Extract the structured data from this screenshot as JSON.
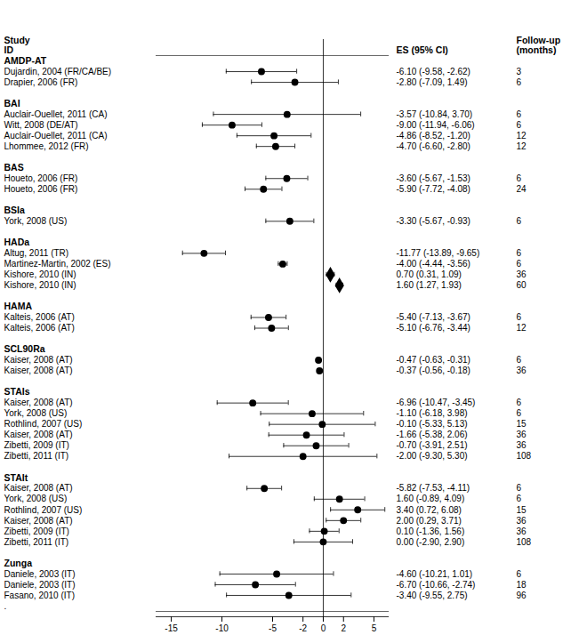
{
  "chart_data": {
    "type": "forest",
    "column_headers": [
      "Study\nID",
      "ES (95% CI)",
      "Follow-up\n(months)"
    ],
    "color": "black",
    "xlim": [
      -16.5,
      6.5
    ],
    "xticks": [
      -15,
      -10,
      -5,
      -2,
      0,
      2,
      5
    ],
    "reference_line": 0,
    "annotations": [
      "."
    ],
    "groups": [
      {
        "name": "AMDP-AT",
        "studies": [
          {
            "label": "Dujardin, 2004 (FR/CA/BE)",
            "value": -6.1,
            "ci_lo": -9.58,
            "ci_hi": -2.62,
            "value_label": "-6.10 (-9.58, -2.62)",
            "follow_up": 3,
            "marker": "circle"
          },
          {
            "label": "Drapier, 2006 (FR)",
            "value": -2.8,
            "ci_lo": -7.09,
            "ci_hi": 1.49,
            "value_label": "-2.80 (-7.09, 1.49)",
            "follow_up": 6,
            "marker": "circle"
          }
        ]
      },
      {
        "name": "BAI",
        "studies": [
          {
            "label": "Auclair-Ouellet, 2011 (CA)",
            "value": -3.57,
            "ci_lo": -10.84,
            "ci_hi": 3.7,
            "value_label": "-3.57 (-10.84, 3.70)",
            "follow_up": 6,
            "marker": "circle"
          },
          {
            "label": "Witt, 2008 (DE/AT)",
            "value": -9.0,
            "ci_lo": -11.94,
            "ci_hi": -6.06,
            "value_label": "-9.00 (-11.94, -6.06)",
            "follow_up": 6,
            "marker": "circle"
          },
          {
            "label": "Auclair-Ouellet, 2011 (CA)",
            "value": -4.86,
            "ci_lo": -8.52,
            "ci_hi": -1.2,
            "value_label": "-4.86 (-8.52, -1.20)",
            "follow_up": 12,
            "marker": "circle"
          },
          {
            "label": "Lhommee, 2012 (FR)",
            "value": -4.7,
            "ci_lo": -6.6,
            "ci_hi": -2.8,
            "value_label": "-4.70 (-6.60, -2.80)",
            "follow_up": 12,
            "marker": "circle"
          }
        ]
      },
      {
        "name": "BAS",
        "studies": [
          {
            "label": "Houeto, 2006 (FR)",
            "value": -3.6,
            "ci_lo": -5.67,
            "ci_hi": -1.53,
            "value_label": "-3.60 (-5.67, -1.53)",
            "follow_up": 6,
            "marker": "circle"
          },
          {
            "label": "Houeto, 2006 (FR)",
            "value": -5.9,
            "ci_lo": -7.72,
            "ci_hi": -4.08,
            "value_label": "-5.90 (-7.72, -4.08)",
            "follow_up": 24,
            "marker": "circle"
          }
        ]
      },
      {
        "name": "BSIa",
        "studies": [
          {
            "label": "York, 2008 (US)",
            "value": -3.3,
            "ci_lo": -5.67,
            "ci_hi": -0.93,
            "value_label": "-3.30 (-5.67, -0.93)",
            "follow_up": 6,
            "marker": "circle"
          }
        ]
      },
      {
        "name": "HADa",
        "studies": [
          {
            "label": "Altug, 2011 (TR)",
            "value": -11.77,
            "ci_lo": -13.89,
            "ci_hi": -9.65,
            "value_label": "-11.77 (-13.89, -9.65)",
            "follow_up": 6,
            "marker": "circle"
          },
          {
            "label": "Martinez-Martin, 2002 (ES)",
            "value": -4.0,
            "ci_lo": -4.44,
            "ci_hi": -3.56,
            "value_label": "-4.00 (-4.44, -3.56)",
            "follow_up": 6,
            "marker": "circle"
          },
          {
            "label": "Kishore, 2010 (IN)",
            "value": 0.7,
            "ci_lo": 0.31,
            "ci_hi": 1.09,
            "value_label": "0.70 (0.31, 1.09)",
            "follow_up": 36,
            "marker": "diamond"
          },
          {
            "label": "Kishore, 2010 (IN)",
            "value": 1.6,
            "ci_lo": 1.27,
            "ci_hi": 1.93,
            "value_label": "1.60 (1.27, 1.93)",
            "follow_up": 60,
            "marker": "diamond"
          }
        ]
      },
      {
        "name": "HAMA",
        "studies": [
          {
            "label": "Kalteis, 2006 (AT)",
            "value": -5.4,
            "ci_lo": -7.13,
            "ci_hi": -3.67,
            "value_label": "-5.40 (-7.13, -3.67)",
            "follow_up": 6,
            "marker": "circle"
          },
          {
            "label": "Kalteis, 2006 (AT)",
            "value": -5.1,
            "ci_lo": -6.76,
            "ci_hi": -3.44,
            "value_label": "-5.10 (-6.76, -3.44)",
            "follow_up": 12,
            "marker": "circle"
          }
        ]
      },
      {
        "name": "SCL90Ra",
        "studies": [
          {
            "label": "Kaiser, 2008 (AT)",
            "value": -0.47,
            "ci_lo": -0.63,
            "ci_hi": -0.31,
            "value_label": "-0.47 (-0.63, -0.31)",
            "follow_up": 6,
            "marker": "circle"
          },
          {
            "label": "Kaiser, 2008 (AT)",
            "value": -0.37,
            "ci_lo": -0.56,
            "ci_hi": -0.18,
            "value_label": "-0.37 (-0.56, -0.18)",
            "follow_up": 36,
            "marker": "circle"
          }
        ]
      },
      {
        "name": "STAIs",
        "studies": [
          {
            "label": "Kaiser, 2008 (AT)",
            "value": -6.96,
            "ci_lo": -10.47,
            "ci_hi": -3.45,
            "value_label": "-6.96 (-10.47, -3.45)",
            "follow_up": 6,
            "marker": "circle"
          },
          {
            "label": "York, 2008 (US)",
            "value": -1.1,
            "ci_lo": -6.18,
            "ci_hi": 3.98,
            "value_label": "-1.10 (-6.18, 3.98)",
            "follow_up": 6,
            "marker": "circle"
          },
          {
            "label": "Rothlind, 2007 (US)",
            "value": -0.1,
            "ci_lo": -5.33,
            "ci_hi": 5.13,
            "value_label": "-0.10 (-5.33, 5.13)",
            "follow_up": 15,
            "marker": "circle"
          },
          {
            "label": "Kaiser, 2008 (AT)",
            "value": -1.66,
            "ci_lo": -5.38,
            "ci_hi": 2.06,
            "value_label": "-1.66 (-5.38, 2.06)",
            "follow_up": 36,
            "marker": "circle"
          },
          {
            "label": "Zibetti, 2009 (IT)",
            "value": -0.7,
            "ci_lo": -3.91,
            "ci_hi": 2.51,
            "value_label": "-0.70 (-3.91, 2.51)",
            "follow_up": 36,
            "marker": "circle"
          },
          {
            "label": "Zibetti, 2011 (IT)",
            "value": -2.0,
            "ci_lo": -9.3,
            "ci_hi": 5.3,
            "value_label": "-2.00 (-9.30, 5.30)",
            "follow_up": 108,
            "marker": "circle"
          }
        ]
      },
      {
        "name": "STAIt",
        "studies": [
          {
            "label": "Kaiser, 2008 (AT)",
            "value": -5.82,
            "ci_lo": -7.53,
            "ci_hi": -4.11,
            "value_label": "-5.82 (-7.53, -4.11)",
            "follow_up": 6,
            "marker": "circle"
          },
          {
            "label": "York, 2008 (US)",
            "value": 1.6,
            "ci_lo": -0.89,
            "ci_hi": 4.09,
            "value_label": "1.60 (-0.89, 4.09)",
            "follow_up": 6,
            "marker": "circle"
          },
          {
            "label": "Rothlind, 2007 (US)",
            "value": 3.4,
            "ci_lo": 0.72,
            "ci_hi": 6.08,
            "value_label": "3.40 (0.72, 6.08)",
            "follow_up": 15,
            "marker": "circle"
          },
          {
            "label": "Kaiser, 2008 (AT)",
            "value": 2.0,
            "ci_lo": 0.29,
            "ci_hi": 3.71,
            "value_label": "2.00 (0.29, 3.71)",
            "follow_up": 36,
            "marker": "circle"
          },
          {
            "label": "Zibetti, 2009 (IT)",
            "value": 0.1,
            "ci_lo": -1.36,
            "ci_hi": 1.56,
            "value_label": "0.10 (-1.36, 1.56)",
            "follow_up": 36,
            "marker": "circle"
          },
          {
            "label": "Zibetti, 2011 (IT)",
            "value": 0.0,
            "ci_lo": -2.9,
            "ci_hi": 2.9,
            "value_label": "0.00 (-2.90, 2.90)",
            "follow_up": 108,
            "marker": "circle"
          }
        ]
      },
      {
        "name": "Zunga",
        "studies": [
          {
            "label": "Daniele, 2003 (IT)",
            "value": -4.6,
            "ci_lo": -10.21,
            "ci_hi": 1.01,
            "value_label": "-4.60 (-10.21, 1.01)",
            "follow_up": 6,
            "marker": "circle"
          },
          {
            "label": "Daniele, 2003 (IT)",
            "value": -6.7,
            "ci_lo": -10.66,
            "ci_hi": -2.74,
            "value_label": "-6.70 (-10.66, -2.74)",
            "follow_up": 18,
            "marker": "circle"
          },
          {
            "label": "Fasano, 2010 (IT)",
            "value": -3.4,
            "ci_lo": -9.55,
            "ci_hi": 2.75,
            "value_label": "-3.40 (-9.55, 2.75)",
            "follow_up": 96,
            "marker": "circle"
          }
        ]
      }
    ]
  }
}
